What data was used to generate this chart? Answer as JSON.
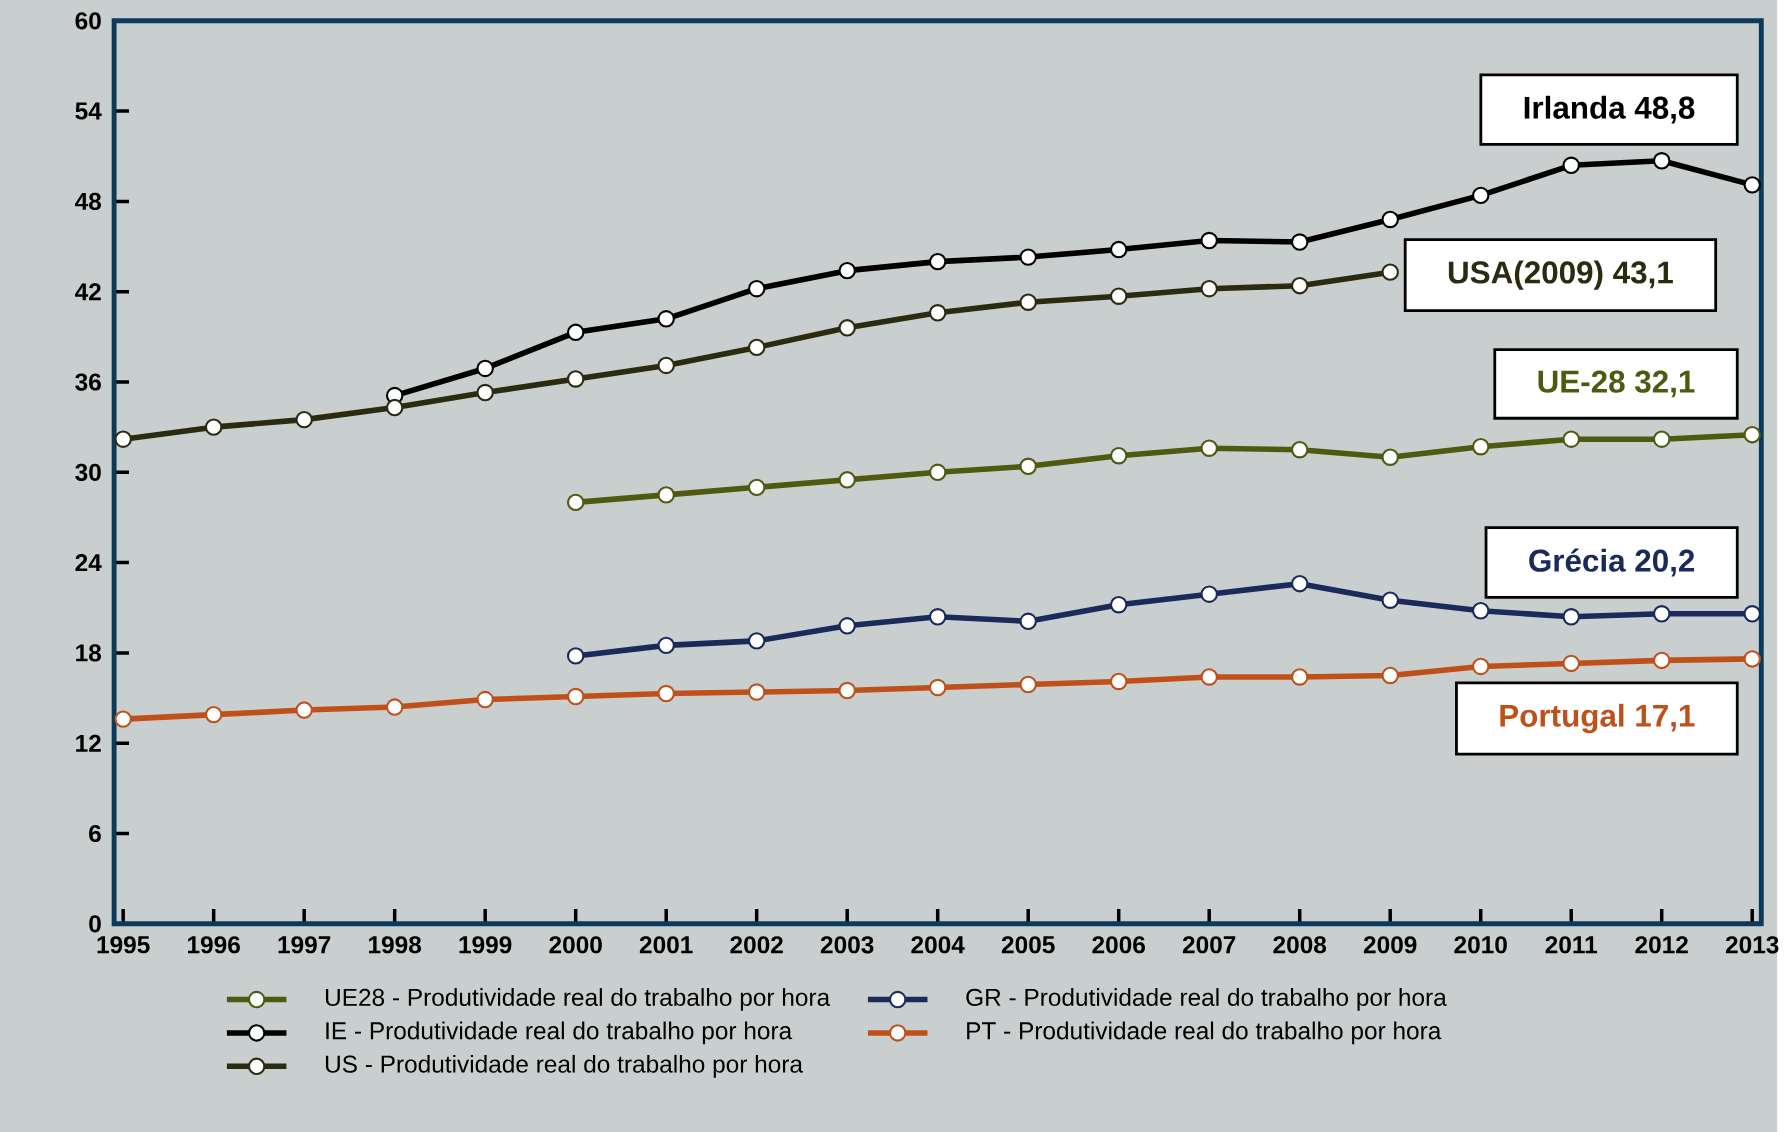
{
  "chart_data": {
    "type": "line",
    "categories": [
      "1995",
      "1996",
      "1997",
      "1998",
      "1999",
      "2000",
      "2001",
      "2002",
      "2003",
      "2004",
      "2005",
      "2006",
      "2007",
      "2008",
      "2009",
      "2010",
      "2011",
      "2012",
      "2013"
    ],
    "series": [
      {
        "name": "UE28 - Produtividade real do trabalho por hora",
        "color": "#4d5a10",
        "values": [
          null,
          null,
          null,
          null,
          null,
          28.0,
          28.5,
          29.0,
          29.5,
          30.0,
          30.4,
          31.1,
          31.6,
          31.5,
          31.0,
          31.7,
          32.2,
          32.2,
          32.5
        ]
      },
      {
        "name": "GR - Produtividade real do trabalho por hora",
        "color": "#1a2a5a",
        "values": [
          null,
          null,
          null,
          null,
          null,
          17.8,
          18.5,
          18.8,
          19.8,
          20.4,
          20.1,
          21.2,
          21.9,
          22.6,
          21.5,
          20.8,
          20.4,
          20.6,
          20.6
        ]
      },
      {
        "name": "IE - Produtividade real do trabalho por hora",
        "color": "#000000",
        "values": [
          null,
          null,
          null,
          35.1,
          36.9,
          39.3,
          40.2,
          42.2,
          43.4,
          44.0,
          44.3,
          44.8,
          45.4,
          45.3,
          46.8,
          48.4,
          50.4,
          50.7,
          49.1
        ]
      },
      {
        "name": "PT - Produtividade real do trabalho por hora",
        "color": "#c0501a",
        "values": [
          13.6,
          13.9,
          14.2,
          14.4,
          14.9,
          15.1,
          15.3,
          15.4,
          15.5,
          15.7,
          15.9,
          16.1,
          16.4,
          16.4,
          16.5,
          17.1,
          17.3,
          17.5,
          17.6
        ]
      },
      {
        "name": "US - Produtividade real do trabalho por hora",
        "color": "#2b2b10",
        "values": [
          32.2,
          33.0,
          33.5,
          34.3,
          35.3,
          36.2,
          37.1,
          38.3,
          39.6,
          40.6,
          41.3,
          41.7,
          42.2,
          42.4,
          43.3,
          null,
          null,
          null,
          null
        ]
      }
    ],
    "ylim": [
      0,
      60
    ],
    "yticks": [
      0,
      6,
      12,
      18,
      24,
      30,
      36,
      42,
      48,
      54,
      60
    ],
    "marker": "circle",
    "line_style": "solid",
    "legend": "bottom",
    "annotations": [
      {
        "text": "Irlanda  48,8",
        "x": "2013",
        "y": 48.8
      },
      {
        "text": "USA(2009)  43,1",
        "x": "2009",
        "y": 43.1
      },
      {
        "text": "UE-28  32,1",
        "x": "2013",
        "y": 32.1
      },
      {
        "text": "Grécia  20,2",
        "x": "2013",
        "y": 20.2
      },
      {
        "text": "Portugal  17,1",
        "x": "2013",
        "y": 17.1
      }
    ]
  }
}
